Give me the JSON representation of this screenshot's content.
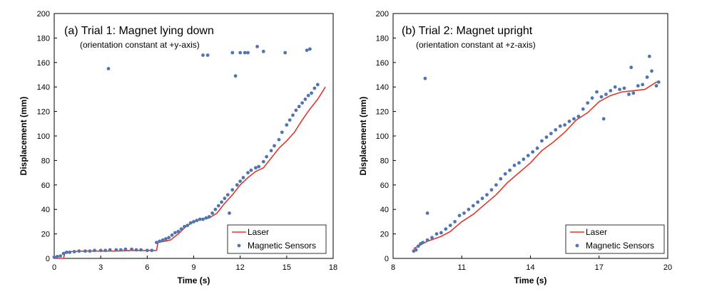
{
  "colors": {
    "laser": "#e2372a",
    "sensor": "#4f74b0",
    "frame": "#000000"
  },
  "chart_data": [
    {
      "type": "scatter",
      "title": "(a) Trial 1: Magnet lying down",
      "subtitle": "(orientation constant at +y-axis)",
      "xlabel": "Time (s)",
      "ylabel": "Displacement (mm)",
      "xlim": [
        0,
        18
      ],
      "ylim": [
        0,
        200
      ],
      "xticks": [
        "0",
        "3",
        "6",
        "9",
        "12",
        "15",
        "18"
      ],
      "yticks": [
        "0",
        "20",
        "40",
        "60",
        "80",
        "100",
        "120",
        "140",
        "160",
        "180",
        "200"
      ],
      "legend": {
        "position": "bottom-right",
        "laser_label": "Laser",
        "sensor_label": "Magnetic Sensors"
      },
      "series": [
        {
          "name": "Laser",
          "kind": "line",
          "x": [
            0,
            0.6,
            0.7,
            1,
            2,
            3,
            4,
            5,
            6,
            6.6,
            6.7,
            7.5,
            8,
            8.5,
            9,
            9.5,
            10,
            10.5,
            11,
            11.5,
            12,
            12.5,
            13,
            13.5,
            14,
            14.5,
            15,
            15.5,
            16,
            16.5,
            17,
            17.5
          ],
          "y": [
            0,
            0,
            5,
            5.5,
            6,
            6,
            6,
            6.5,
            6.5,
            6.5,
            13,
            15,
            20,
            26,
            30,
            32,
            33,
            37,
            45,
            52,
            60,
            66,
            71,
            74,
            82,
            90,
            96,
            103,
            113,
            122,
            130,
            140
          ]
        },
        {
          "name": "Magnetic Sensors",
          "kind": "scatter",
          "x": [
            0,
            0.2,
            0.4,
            0.6,
            0.8,
            1,
            1.3,
            1.6,
            2,
            2.3,
            2.6,
            3,
            3.3,
            3.6,
            4,
            4.3,
            4.6,
            5,
            5.3,
            5.6,
            6,
            6.3,
            6.6,
            6.8,
            7,
            7.2,
            7.4,
            7.6,
            7.8,
            8,
            8.2,
            8.4,
            8.6,
            8.8,
            9,
            9.2,
            9.4,
            9.6,
            9.8,
            10,
            10.2,
            10.4,
            10.6,
            10.8,
            11,
            11.2,
            11.5,
            11.8,
            12,
            12.2,
            12.5,
            12.7,
            13,
            13.2,
            13.5,
            13.7,
            14,
            14.2,
            14.5,
            14.7,
            15,
            15.2,
            15.4,
            15.6,
            15.8,
            16,
            16.2,
            16.4,
            16.6,
            16.8,
            17,
            3.5,
            9.6,
            9.9,
            11.5,
            11.7,
            12,
            12.3,
            12.5,
            13.1,
            13.5,
            14.9,
            16.3,
            16.5,
            11.3
          ],
          "y": [
            1,
            1.5,
            2,
            4,
            5,
            5,
            5.5,
            6,
            6,
            6,
            6.5,
            6.5,
            6.5,
            7,
            7,
            7,
            7.5,
            7.5,
            7,
            7,
            6.5,
            6.5,
            13,
            14,
            15,
            16,
            17,
            19,
            21,
            22,
            24,
            26,
            27,
            29,
            30,
            31,
            32,
            32,
            33,
            34,
            37,
            40,
            43,
            46,
            49,
            52,
            56,
            60,
            63,
            66,
            70,
            72,
            74,
            75,
            79,
            83,
            88,
            92,
            97,
            103,
            109,
            113,
            117,
            121,
            124,
            127,
            130,
            133,
            135,
            139,
            142,
            155,
            166,
            166,
            168,
            149,
            168,
            168,
            168,
            173,
            169,
            168,
            170,
            171,
            37
          ]
        }
      ]
    },
    {
      "type": "scatter",
      "title": "(b) Trial 2: Magnet upright",
      "subtitle": "(orientation constant at +z-axis)",
      "xlabel": "Time (s)",
      "ylabel": "Displacement (mm)",
      "xlim": [
        8,
        20
      ],
      "ylim": [
        0,
        200
      ],
      "xticks": [
        "8",
        "11",
        "14",
        "17",
        "20"
      ],
      "yticks": [
        "0",
        "20",
        "40",
        "60",
        "80",
        "100",
        "120",
        "140",
        "160",
        "180",
        "200"
      ],
      "legend": {
        "position": "bottom-right",
        "laser_label": "Laser",
        "sensor_label": "Magnetic Sensors"
      },
      "series": [
        {
          "name": "Laser",
          "kind": "line",
          "x": [
            8.9,
            9.2,
            9.5,
            9.8,
            10.1,
            10.5,
            11,
            11.5,
            12,
            12.5,
            13,
            13.5,
            14,
            14.5,
            15,
            15.5,
            16,
            16.5,
            17,
            17.5,
            18,
            18.5,
            19,
            19.5,
            19.6
          ],
          "y": [
            8,
            11,
            14,
            16,
            18,
            22,
            30,
            36,
            44,
            52,
            62,
            70,
            78,
            88,
            95,
            103,
            113,
            119,
            128,
            133,
            136,
            137,
            138,
            144,
            144
          ]
        },
        {
          "name": "Magnetic Sensors",
          "kind": "scatter",
          "x": [
            8.9,
            9.0,
            9.1,
            9.2,
            9.3,
            9.5,
            9.7,
            9.9,
            10.1,
            10.3,
            10.5,
            10.7,
            10.9,
            11.1,
            11.3,
            11.5,
            11.7,
            11.9,
            12.1,
            12.3,
            12.5,
            12.7,
            12.9,
            13.1,
            13.3,
            13.5,
            13.7,
            13.9,
            14.1,
            14.3,
            14.5,
            14.7,
            14.9,
            15.1,
            15.3,
            15.5,
            15.7,
            15.9,
            16.1,
            16.3,
            16.5,
            16.7,
            16.9,
            17.1,
            17.3,
            17.5,
            17.7,
            17.9,
            18.1,
            18.3,
            18.5,
            18.7,
            18.9,
            19.1,
            19.3,
            19.5,
            19.6,
            9.4,
            9.5,
            17.2,
            18.4,
            19.2
          ],
          "y": [
            6,
            7,
            10,
            12,
            13,
            15,
            17,
            20,
            21,
            24,
            27,
            30,
            35,
            37,
            40,
            43,
            46,
            49,
            52,
            56,
            60,
            65,
            69,
            72,
            76,
            78,
            81,
            84,
            87,
            90,
            96,
            99,
            102,
            105,
            108,
            109,
            112,
            114,
            116,
            122,
            127,
            131,
            136,
            132,
            134,
            137,
            140,
            138,
            139,
            134,
            135,
            141,
            142,
            148,
            153,
            141,
            144,
            147,
            37,
            114,
            156,
            165
          ]
        }
      ]
    }
  ]
}
